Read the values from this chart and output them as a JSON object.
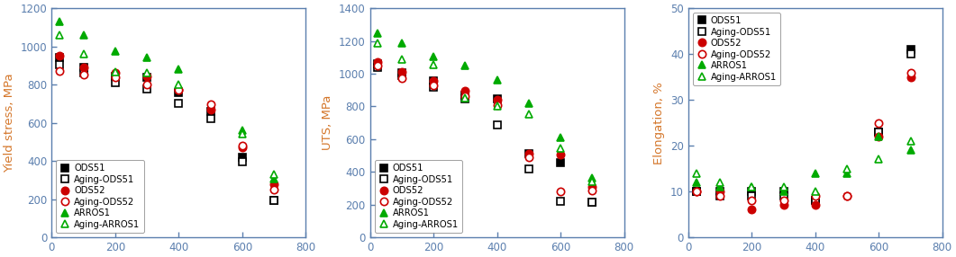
{
  "panel1": {
    "ylabel": "Yield stress, MPa",
    "ylim": [
      0,
      1200
    ],
    "yticks": [
      0,
      200,
      400,
      600,
      800,
      1000,
      1200
    ],
    "xlim": [
      0,
      800
    ],
    "xticks": [
      0,
      200,
      400,
      600,
      800
    ],
    "legend_loc": "lower left",
    "series": {
      "ODS51": {
        "x": [
          25,
          100,
          200,
          300,
          400,
          500,
          600,
          700
        ],
        "y": [
          940,
          890,
          845,
          840,
          760,
          660,
          420,
          195
        ],
        "color": "#000000",
        "marker": "s",
        "filled": true
      },
      "Aging-ODS51": {
        "x": [
          25,
          100,
          200,
          300,
          400,
          500,
          600,
          700
        ],
        "y": [
          905,
          860,
          808,
          775,
          700,
          620,
          395,
          195
        ],
        "color": "#000000",
        "marker": "s",
        "filled": false
      },
      "ODS52": {
        "x": [
          25,
          100,
          200,
          300,
          400,
          500,
          600,
          700
        ],
        "y": [
          950,
          888,
          862,
          845,
          770,
          670,
          470,
          280
        ],
        "color": "#cc0000",
        "marker": "o",
        "filled": true
      },
      "Aging-ODS52": {
        "x": [
          25,
          100,
          200,
          300,
          400,
          500,
          600,
          700
        ],
        "y": [
          870,
          850,
          840,
          800,
          770,
          695,
          480,
          250
        ],
        "color": "#cc0000",
        "marker": "o",
        "filled": false
      },
      "ARROS1": {
        "x": [
          25,
          100,
          200,
          300,
          400,
          600,
          700
        ],
        "y": [
          1130,
          1060,
          975,
          940,
          880,
          560,
          305
        ],
        "color": "#00aa00",
        "marker": "^",
        "filled": true
      },
      "Aging-ARROS1": {
        "x": [
          25,
          100,
          200,
          300,
          400,
          600,
          700
        ],
        "y": [
          1060,
          960,
          865,
          860,
          800,
          540,
          330
        ],
        "color": "#00aa00",
        "marker": "^",
        "filled": false
      }
    }
  },
  "panel2": {
    "ylabel": "UTS, MPa",
    "ylim": [
      0,
      1400
    ],
    "yticks": [
      0,
      200,
      400,
      600,
      800,
      1000,
      1200,
      1400
    ],
    "xlim": [
      0,
      800
    ],
    "xticks": [
      0,
      200,
      400,
      600,
      800
    ],
    "legend_loc": "lower left",
    "series": {
      "ODS51": {
        "x": [
          25,
          100,
          200,
          300,
          400,
          500,
          600,
          700
        ],
        "y": [
          1060,
          1005,
          955,
          870,
          845,
          510,
          455,
          215
        ],
        "color": "#000000",
        "marker": "s",
        "filled": true
      },
      "Aging-ODS51": {
        "x": [
          25,
          100,
          200,
          300,
          400,
          500,
          600,
          700
        ],
        "y": [
          1040,
          990,
          920,
          845,
          685,
          420,
          220,
          215
        ],
        "color": "#000000",
        "marker": "s",
        "filled": false
      },
      "ODS52": {
        "x": [
          25,
          100,
          200,
          300,
          400,
          500,
          600,
          700
        ],
        "y": [
          1070,
          1010,
          955,
          895,
          840,
          510,
          505,
          310
        ],
        "color": "#cc0000",
        "marker": "o",
        "filled": true
      },
      "Aging-ODS52": {
        "x": [
          25,
          100,
          200,
          300,
          400,
          500,
          600,
          700
        ],
        "y": [
          1050,
          975,
          930,
          860,
          805,
          490,
          280,
          285
        ],
        "color": "#cc0000",
        "marker": "o",
        "filled": false
      },
      "ARROS1": {
        "x": [
          25,
          100,
          200,
          300,
          400,
          500,
          600,
          700
        ],
        "y": [
          1245,
          1185,
          1105,
          1048,
          960,
          820,
          610,
          365
        ],
        "color": "#00aa00",
        "marker": "^",
        "filled": true
      },
      "Aging-ARROS1": {
        "x": [
          25,
          100,
          200,
          300,
          400,
          500,
          600,
          700
        ],
        "y": [
          1185,
          1085,
          1055,
          850,
          800,
          755,
          545,
          340
        ],
        "color": "#00aa00",
        "marker": "^",
        "filled": false
      }
    }
  },
  "panel3": {
    "ylabel": "Elongation, %",
    "ylim": [
      0,
      50
    ],
    "yticks": [
      0,
      10,
      20,
      30,
      40,
      50
    ],
    "xlim": [
      0,
      800
    ],
    "xticks": [
      0,
      200,
      400,
      600,
      800
    ],
    "legend_loc": "upper left",
    "series": {
      "ODS51": {
        "x": [
          25,
          100,
          200,
          300,
          400,
          600,
          700
        ],
        "y": [
          10,
          10,
          10,
          10,
          8,
          23,
          41
        ],
        "color": "#000000",
        "marker": "s",
        "filled": true
      },
      "Aging-ODS51": {
        "x": [
          25,
          100,
          200,
          300,
          400,
          600,
          700
        ],
        "y": [
          10,
          9,
          9,
          9,
          8,
          23,
          40
        ],
        "color": "#000000",
        "marker": "s",
        "filled": false
      },
      "ODS52": {
        "x": [
          25,
          100,
          200,
          300,
          400,
          500,
          600,
          700
        ],
        "y": [
          10,
          10,
          6,
          7,
          7,
          9,
          22,
          35
        ],
        "color": "#cc0000",
        "marker": "o",
        "filled": true
      },
      "Aging-ODS52": {
        "x": [
          25,
          100,
          200,
          300,
          400,
          500,
          600,
          700
        ],
        "y": [
          10,
          9,
          8,
          8,
          9,
          9,
          25,
          36
        ],
        "color": "#cc0000",
        "marker": "o",
        "filled": false
      },
      "ARROS1": {
        "x": [
          25,
          100,
          200,
          300,
          400,
          500,
          600,
          700
        ],
        "y": [
          12,
          11,
          11,
          10,
          14,
          14,
          22,
          19
        ],
        "color": "#00aa00",
        "marker": "^",
        "filled": true
      },
      "Aging-ARROS1": {
        "x": [
          25,
          100,
          200,
          300,
          400,
          500,
          600,
          700
        ],
        "y": [
          14,
          12,
          11,
          11,
          10,
          15,
          17,
          21
        ],
        "color": "#00aa00",
        "marker": "^",
        "filled": false
      }
    }
  },
  "legend_order": [
    "ODS51",
    "Aging-ODS51",
    "ODS52",
    "Aging-ODS52",
    "ARROS1",
    "Aging-ARROS1"
  ],
  "marker_size": 6,
  "axis_color": "#5b7fae",
  "label_color": "#d4762a",
  "tick_color": "#5b7fae"
}
